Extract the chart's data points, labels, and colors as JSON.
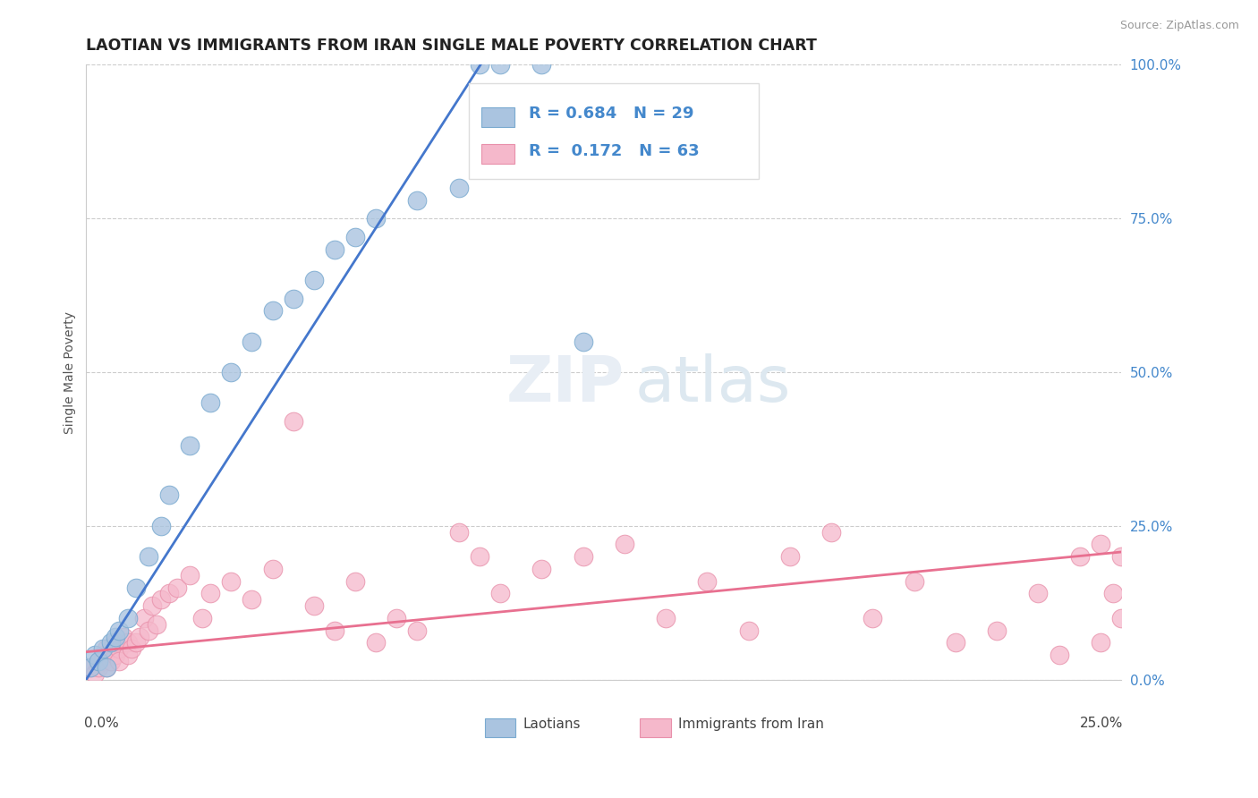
{
  "title": "LAOTIAN VS IMMIGRANTS FROM IRAN SINGLE MALE POVERTY CORRELATION CHART",
  "source": "Source: ZipAtlas.com",
  "ylabel": "Single Male Poverty",
  "y_tick_labels": [
    "0.0%",
    "25.0%",
    "50.0%",
    "75.0%",
    "100.0%"
  ],
  "y_tick_values": [
    0.0,
    0.25,
    0.5,
    0.75,
    1.0
  ],
  "x_tick_labels": [
    "0.0%",
    "25.0%"
  ],
  "x_tick_values": [
    0.0,
    0.25
  ],
  "xlim": [
    0.0,
    0.25
  ],
  "ylim": [
    0.0,
    1.0
  ],
  "laotian_color": "#aac4e0",
  "laotian_edge": "#7aaad0",
  "iran_color": "#f5b8cb",
  "iran_edge": "#e890aa",
  "line_blue": "#4477cc",
  "line_pink": "#e87090",
  "legend_r_blue": "R = 0.684",
  "legend_n_blue": "N = 29",
  "legend_r_pink": "R =  0.172",
  "legend_n_pink": "N = 63",
  "legend_label_blue": "Laotians",
  "legend_label_pink": "Immigrants from Iran",
  "watermark_zip": "ZIP",
  "watermark_atlas": "atlas",
  "background_color": "#ffffff",
  "grid_color": "#cccccc",
  "tick_color": "#4488cc",
  "laotian_x": [
    0.001,
    0.002,
    0.003,
    0.004,
    0.005,
    0.006,
    0.007,
    0.008,
    0.01,
    0.012,
    0.015,
    0.018,
    0.02,
    0.025,
    0.03,
    0.035,
    0.04,
    0.045,
    0.05,
    0.055,
    0.06,
    0.065,
    0.07,
    0.08,
    0.09,
    0.095,
    0.1,
    0.11,
    0.12
  ],
  "laotian_y": [
    0.02,
    0.04,
    0.03,
    0.05,
    0.02,
    0.06,
    0.07,
    0.08,
    0.1,
    0.15,
    0.2,
    0.25,
    0.3,
    0.38,
    0.45,
    0.5,
    0.55,
    0.6,
    0.62,
    0.65,
    0.7,
    0.72,
    0.75,
    0.78,
    0.8,
    1.0,
    1.0,
    1.0,
    0.55
  ],
  "iran_x": [
    0.001,
    0.002,
    0.003,
    0.003,
    0.004,
    0.004,
    0.005,
    0.005,
    0.006,
    0.006,
    0.007,
    0.007,
    0.008,
    0.008,
    0.009,
    0.01,
    0.01,
    0.011,
    0.012,
    0.013,
    0.014,
    0.015,
    0.016,
    0.017,
    0.018,
    0.02,
    0.022,
    0.025,
    0.028,
    0.03,
    0.035,
    0.04,
    0.045,
    0.05,
    0.055,
    0.06,
    0.065,
    0.07,
    0.075,
    0.08,
    0.09,
    0.095,
    0.1,
    0.11,
    0.12,
    0.13,
    0.14,
    0.15,
    0.16,
    0.17,
    0.18,
    0.19,
    0.2,
    0.21,
    0.22,
    0.23,
    0.24,
    0.245,
    0.248,
    0.25,
    0.25,
    0.245,
    0.235
  ],
  "iran_y": [
    0.02,
    0.01,
    0.03,
    0.02,
    0.04,
    0.03,
    0.05,
    0.02,
    0.03,
    0.05,
    0.04,
    0.06,
    0.05,
    0.03,
    0.07,
    0.06,
    0.04,
    0.05,
    0.06,
    0.07,
    0.1,
    0.08,
    0.12,
    0.09,
    0.13,
    0.14,
    0.15,
    0.17,
    0.1,
    0.14,
    0.16,
    0.13,
    0.18,
    0.42,
    0.12,
    0.08,
    0.16,
    0.06,
    0.1,
    0.08,
    0.24,
    0.2,
    0.14,
    0.18,
    0.2,
    0.22,
    0.1,
    0.16,
    0.08,
    0.2,
    0.24,
    0.1,
    0.16,
    0.06,
    0.08,
    0.14,
    0.2,
    0.22,
    0.14,
    0.2,
    0.1,
    0.06,
    0.04
  ]
}
